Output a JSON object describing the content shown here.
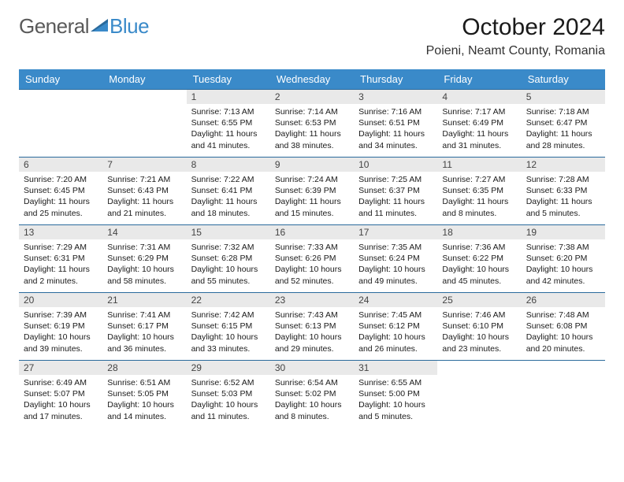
{
  "brand": {
    "part1": "General",
    "part2": "Blue"
  },
  "title": "October 2024",
  "location": "Poieni, Neamt County, Romania",
  "colors": {
    "header_bg": "#3a8ac9",
    "header_text": "#ffffff",
    "daynum_bg": "#e9e9e9",
    "border": "#2a6a9c",
    "logo_gray": "#5a5a5a",
    "logo_blue": "#3a8ac9",
    "text": "#1a1a1a"
  },
  "weekdays": [
    "Sunday",
    "Monday",
    "Tuesday",
    "Wednesday",
    "Thursday",
    "Friday",
    "Saturday"
  ],
  "layout": {
    "first_weekday_index": 2,
    "days_in_month": 31
  },
  "days": {
    "1": {
      "sunrise": "7:13 AM",
      "sunset": "6:55 PM",
      "daylight": "11 hours and 41 minutes."
    },
    "2": {
      "sunrise": "7:14 AM",
      "sunset": "6:53 PM",
      "daylight": "11 hours and 38 minutes."
    },
    "3": {
      "sunrise": "7:16 AM",
      "sunset": "6:51 PM",
      "daylight": "11 hours and 34 minutes."
    },
    "4": {
      "sunrise": "7:17 AM",
      "sunset": "6:49 PM",
      "daylight": "11 hours and 31 minutes."
    },
    "5": {
      "sunrise": "7:18 AM",
      "sunset": "6:47 PM",
      "daylight": "11 hours and 28 minutes."
    },
    "6": {
      "sunrise": "7:20 AM",
      "sunset": "6:45 PM",
      "daylight": "11 hours and 25 minutes."
    },
    "7": {
      "sunrise": "7:21 AM",
      "sunset": "6:43 PM",
      "daylight": "11 hours and 21 minutes."
    },
    "8": {
      "sunrise": "7:22 AM",
      "sunset": "6:41 PM",
      "daylight": "11 hours and 18 minutes."
    },
    "9": {
      "sunrise": "7:24 AM",
      "sunset": "6:39 PM",
      "daylight": "11 hours and 15 minutes."
    },
    "10": {
      "sunrise": "7:25 AM",
      "sunset": "6:37 PM",
      "daylight": "11 hours and 11 minutes."
    },
    "11": {
      "sunrise": "7:27 AM",
      "sunset": "6:35 PM",
      "daylight": "11 hours and 8 minutes."
    },
    "12": {
      "sunrise": "7:28 AM",
      "sunset": "6:33 PM",
      "daylight": "11 hours and 5 minutes."
    },
    "13": {
      "sunrise": "7:29 AM",
      "sunset": "6:31 PM",
      "daylight": "11 hours and 2 minutes."
    },
    "14": {
      "sunrise": "7:31 AM",
      "sunset": "6:29 PM",
      "daylight": "10 hours and 58 minutes."
    },
    "15": {
      "sunrise": "7:32 AM",
      "sunset": "6:28 PM",
      "daylight": "10 hours and 55 minutes."
    },
    "16": {
      "sunrise": "7:33 AM",
      "sunset": "6:26 PM",
      "daylight": "10 hours and 52 minutes."
    },
    "17": {
      "sunrise": "7:35 AM",
      "sunset": "6:24 PM",
      "daylight": "10 hours and 49 minutes."
    },
    "18": {
      "sunrise": "7:36 AM",
      "sunset": "6:22 PM",
      "daylight": "10 hours and 45 minutes."
    },
    "19": {
      "sunrise": "7:38 AM",
      "sunset": "6:20 PM",
      "daylight": "10 hours and 42 minutes."
    },
    "20": {
      "sunrise": "7:39 AM",
      "sunset": "6:19 PM",
      "daylight": "10 hours and 39 minutes."
    },
    "21": {
      "sunrise": "7:41 AM",
      "sunset": "6:17 PM",
      "daylight": "10 hours and 36 minutes."
    },
    "22": {
      "sunrise": "7:42 AM",
      "sunset": "6:15 PM",
      "daylight": "10 hours and 33 minutes."
    },
    "23": {
      "sunrise": "7:43 AM",
      "sunset": "6:13 PM",
      "daylight": "10 hours and 29 minutes."
    },
    "24": {
      "sunrise": "7:45 AM",
      "sunset": "6:12 PM",
      "daylight": "10 hours and 26 minutes."
    },
    "25": {
      "sunrise": "7:46 AM",
      "sunset": "6:10 PM",
      "daylight": "10 hours and 23 minutes."
    },
    "26": {
      "sunrise": "7:48 AM",
      "sunset": "6:08 PM",
      "daylight": "10 hours and 20 minutes."
    },
    "27": {
      "sunrise": "6:49 AM",
      "sunset": "5:07 PM",
      "daylight": "10 hours and 17 minutes."
    },
    "28": {
      "sunrise": "6:51 AM",
      "sunset": "5:05 PM",
      "daylight": "10 hours and 14 minutes."
    },
    "29": {
      "sunrise": "6:52 AM",
      "sunset": "5:03 PM",
      "daylight": "10 hours and 11 minutes."
    },
    "30": {
      "sunrise": "6:54 AM",
      "sunset": "5:02 PM",
      "daylight": "10 hours and 8 minutes."
    },
    "31": {
      "sunrise": "6:55 AM",
      "sunset": "5:00 PM",
      "daylight": "10 hours and 5 minutes."
    }
  },
  "labels": {
    "sunrise": "Sunrise: ",
    "sunset": "Sunset: ",
    "daylight": "Daylight: "
  }
}
